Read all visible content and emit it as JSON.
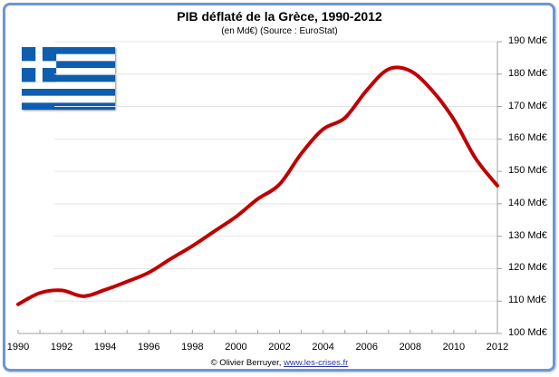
{
  "chart_data": {
    "type": "line",
    "title": "PIB déflaté de la Grèce, 1990-2012",
    "subtitle": "(en Md€) (Source : EuroStat)",
    "xlabel": "",
    "ylabel": "",
    "x": [
      1990,
      1991,
      1992,
      1993,
      1994,
      1995,
      1996,
      1997,
      1998,
      1999,
      2000,
      2001,
      2002,
      2003,
      2004,
      2005,
      2006,
      2007,
      2008,
      2009,
      2010,
      2011,
      2012
    ],
    "series": [
      {
        "name": "PIB déflaté",
        "color": "#c00000",
        "values": [
          109,
          112.5,
          113.3,
          111.5,
          113.5,
          116,
          118.8,
          123,
          127,
          131.5,
          136,
          141.5,
          146,
          155.5,
          163,
          166.5,
          175,
          181.5,
          181,
          175,
          166,
          154,
          145.6
        ]
      }
    ],
    "xticks": [
      "1990",
      "1992",
      "1994",
      "1996",
      "1998",
      "2000",
      "2002",
      "2004",
      "2006",
      "2008",
      "2010",
      "2012"
    ],
    "yticks": [
      "100 Md€",
      "110 Md€",
      "120 Md€",
      "130 Md€",
      "140 Md€",
      "150 Md€",
      "160 Md€",
      "170 Md€",
      "180 Md€",
      "190 Md€"
    ],
    "xlim": [
      1990,
      2012
    ],
    "ylim": [
      100,
      190
    ],
    "y_axis_position": "right",
    "grid": true,
    "legend": "none"
  },
  "footer": {
    "credit": "© Olivier Berruyer, ",
    "link_text": "www.les-crises.fr"
  },
  "decoration": {
    "flag": "greece-flag",
    "flag_colors": {
      "blue": "#0d5eaf",
      "white": "#ffffff"
    },
    "frame_color": "#6d95d3"
  }
}
